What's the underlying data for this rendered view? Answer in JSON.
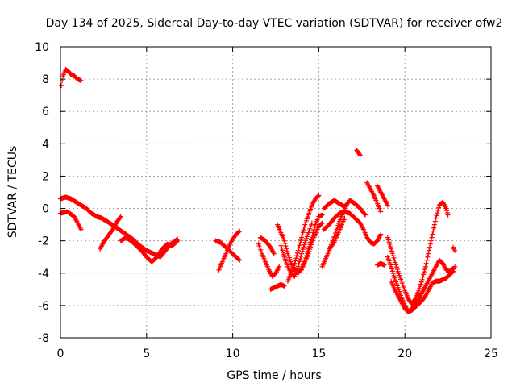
{
  "chart_data": {
    "type": "scatter",
    "title": "Day 134 of 2025, Sidereal Day-to-day VTEC variation (SDTVAR) for receiver ofw2",
    "xlabel": "GPS time / hours",
    "ylabel": "SDTVAR / TECUs",
    "xlim": [
      0,
      25
    ],
    "ylim": [
      -8,
      10
    ],
    "xticks": [
      0,
      5,
      10,
      15,
      20,
      25
    ],
    "yticks": [
      -8,
      -6,
      -4,
      -2,
      0,
      2,
      4,
      6,
      8,
      10
    ],
    "grid": true,
    "marker": "+",
    "color": "#ff0000",
    "series": [
      {
        "name": "tracks",
        "tracks": [
          [
            [
              0.05,
              7.6
            ],
            [
              0.15,
              8.2
            ],
            [
              0.3,
              8.6
            ],
            [
              0.45,
              8.5
            ],
            [
              0.6,
              8.3
            ],
            [
              0.8,
              8.2
            ],
            [
              1.0,
              8.0
            ],
            [
              1.2,
              7.9
            ]
          ],
          [
            [
              0.0,
              0.6
            ],
            [
              0.3,
              0.7
            ],
            [
              0.6,
              0.6
            ],
            [
              0.9,
              0.4
            ],
            [
              1.2,
              0.2
            ],
            [
              1.5,
              0.0
            ],
            [
              1.8,
              -0.3
            ],
            [
              2.1,
              -0.5
            ],
            [
              2.4,
              -0.6
            ],
            [
              2.7,
              -0.8
            ],
            [
              3.0,
              -1.0
            ],
            [
              3.4,
              -1.3
            ],
            [
              3.8,
              -1.6
            ],
            [
              4.2,
              -1.9
            ],
            [
              4.6,
              -2.3
            ],
            [
              5.0,
              -2.6
            ],
            [
              5.4,
              -2.8
            ],
            [
              5.8,
              -3.0
            ],
            [
              6.1,
              -2.6
            ],
            [
              6.4,
              -2.2
            ],
            [
              6.8,
              -1.9
            ]
          ],
          [
            [
              0.0,
              -0.3
            ],
            [
              0.4,
              -0.2
            ],
            [
              0.8,
              -0.5
            ],
            [
              1.0,
              -0.9
            ],
            [
              1.2,
              -1.3
            ]
          ],
          [
            [
              2.3,
              -2.5
            ],
            [
              2.5,
              -2.1
            ],
            [
              2.7,
              -1.8
            ],
            [
              2.9,
              -1.5
            ],
            [
              3.1,
              -1.2
            ],
            [
              3.3,
              -0.8
            ],
            [
              3.5,
              -0.5
            ]
          ],
          [
            [
              3.5,
              -2.0
            ],
            [
              3.8,
              -1.8
            ],
            [
              4.1,
              -2.0
            ],
            [
              4.4,
              -2.3
            ],
            [
              4.7,
              -2.6
            ],
            [
              5.0,
              -3.0
            ],
            [
              5.3,
              -3.3
            ],
            [
              5.6,
              -3.0
            ],
            [
              5.9,
              -2.5
            ],
            [
              6.2,
              -2.2
            ],
            [
              6.5,
              -2.3
            ],
            [
              6.8,
              -2.0
            ]
          ],
          [
            [
              9.2,
              -3.8
            ],
            [
              9.4,
              -3.3
            ],
            [
              9.6,
              -2.8
            ],
            [
              9.8,
              -2.3
            ],
            [
              10.0,
              -1.9
            ],
            [
              10.2,
              -1.6
            ],
            [
              10.4,
              -1.4
            ]
          ],
          [
            [
              9.0,
              -2.0
            ],
            [
              9.3,
              -2.1
            ],
            [
              9.6,
              -2.4
            ],
            [
              9.9,
              -2.7
            ],
            [
              10.2,
              -3.0
            ],
            [
              10.4,
              -3.2
            ]
          ],
          [
            [
              11.5,
              -2.2
            ],
            [
              11.7,
              -2.8
            ],
            [
              11.9,
              -3.3
            ],
            [
              12.1,
              -3.8
            ],
            [
              12.3,
              -4.2
            ],
            [
              12.5,
              -4.0
            ],
            [
              12.7,
              -3.6
            ]
          ],
          [
            [
              11.6,
              -1.8
            ],
            [
              11.9,
              -2.0
            ],
            [
              12.2,
              -2.4
            ],
            [
              12.4,
              -2.8
            ]
          ],
          [
            [
              12.6,
              -1.0
            ],
            [
              12.8,
              -1.5
            ],
            [
              13.0,
              -2.0
            ],
            [
              13.2,
              -2.8
            ],
            [
              13.4,
              -3.4
            ],
            [
              13.6,
              -3.8
            ],
            [
              13.8,
              -4.0
            ],
            [
              14.0,
              -3.7
            ],
            [
              14.2,
              -3.2
            ],
            [
              14.4,
              -2.5
            ],
            [
              14.6,
              -1.8
            ],
            [
              14.8,
              -1.0
            ],
            [
              15.0,
              -0.5
            ],
            [
              15.2,
              -0.4
            ]
          ],
          [
            [
              12.2,
              -5.0
            ],
            [
              12.4,
              -4.9
            ],
            [
              12.6,
              -4.8
            ],
            [
              12.8,
              -4.7
            ],
            [
              13.0,
              -4.8
            ]
          ],
          [
            [
              12.8,
              -2.3
            ],
            [
              13.0,
              -3.0
            ],
            [
              13.2,
              -3.6
            ],
            [
              13.4,
              -4.0
            ],
            [
              13.6,
              -4.2
            ],
            [
              13.8,
              -3.6
            ],
            [
              14.0,
              -2.8
            ],
            [
              14.2,
              -2.1
            ],
            [
              14.4,
              -1.5
            ],
            [
              14.6,
              -0.9
            ]
          ],
          [
            [
              13.2,
              -4.5
            ],
            [
              13.4,
              -4.0
            ],
            [
              13.6,
              -3.4
            ],
            [
              13.8,
              -2.6
            ],
            [
              14.0,
              -1.8
            ],
            [
              14.2,
              -1.0
            ],
            [
              14.4,
              -0.4
            ],
            [
              14.6,
              0.2
            ],
            [
              14.8,
              0.6
            ],
            [
              15.0,
              0.8
            ]
          ],
          [
            [
              14.0,
              -3.8
            ],
            [
              14.2,
              -3.3
            ],
            [
              14.4,
              -2.8
            ],
            [
              14.6,
              -2.1
            ],
            [
              14.8,
              -1.6
            ],
            [
              15.0,
              -1.1
            ],
            [
              15.2,
              -0.9
            ]
          ],
          [
            [
              15.2,
              -3.6
            ],
            [
              15.4,
              -3.1
            ],
            [
              15.6,
              -2.6
            ],
            [
              15.8,
              -2.0
            ],
            [
              16.0,
              -1.4
            ],
            [
              16.2,
              -0.8
            ],
            [
              16.4,
              -0.3
            ],
            [
              16.6,
              0.2
            ]
          ],
          [
            [
              15.3,
              -1.3
            ],
            [
              15.6,
              -1.0
            ],
            [
              15.9,
              -0.6
            ],
            [
              16.2,
              -0.3
            ],
            [
              16.5,
              -0.2
            ],
            [
              16.8,
              -0.3
            ],
            [
              17.1,
              -0.6
            ],
            [
              17.4,
              -0.9
            ]
          ],
          [
            [
              15.3,
              0.0
            ],
            [
              15.6,
              0.3
            ],
            [
              15.9,
              0.5
            ],
            [
              16.2,
              0.3
            ],
            [
              16.5,
              0.1
            ],
            [
              16.8,
              0.5
            ],
            [
              17.1,
              0.3
            ],
            [
              17.4,
              0.0
            ],
            [
              17.7,
              -0.4
            ]
          ],
          [
            [
              15.6,
              -2.5
            ],
            [
              15.9,
              -2.1
            ],
            [
              16.1,
              -1.6
            ],
            [
              16.3,
              -1.1
            ],
            [
              16.5,
              -0.6
            ]
          ],
          [
            [
              17.2,
              3.6
            ],
            [
              17.4,
              3.3
            ]
          ],
          [
            [
              17.4,
              -0.9
            ],
            [
              17.6,
              -1.3
            ],
            [
              17.8,
              -1.8
            ],
            [
              18.0,
              -2.1
            ],
            [
              18.2,
              -2.2
            ],
            [
              18.4,
              -2.0
            ],
            [
              18.6,
              -1.6
            ]
          ],
          [
            [
              17.8,
              1.6
            ],
            [
              18.0,
              1.2
            ],
            [
              18.2,
              0.8
            ],
            [
              18.4,
              0.3
            ],
            [
              18.6,
              -0.2
            ]
          ],
          [
            [
              18.4,
              1.4
            ],
            [
              18.6,
              1.0
            ],
            [
              18.8,
              0.6
            ],
            [
              19.0,
              0.2
            ]
          ],
          [
            [
              18.4,
              -3.5
            ],
            [
              18.6,
              -3.4
            ],
            [
              18.8,
              -3.5
            ]
          ],
          [
            [
              19.0,
              -1.8
            ],
            [
              19.2,
              -2.5
            ],
            [
              19.4,
              -3.2
            ],
            [
              19.6,
              -3.9
            ],
            [
              19.8,
              -4.5
            ],
            [
              20.0,
              -5.1
            ],
            [
              20.2,
              -5.6
            ],
            [
              20.4,
              -5.9
            ],
            [
              20.6,
              -5.6
            ],
            [
              20.8,
              -5.1
            ],
            [
              21.0,
              -4.4
            ],
            [
              21.2,
              -3.6
            ],
            [
              21.4,
              -2.6
            ],
            [
              21.6,
              -1.6
            ],
            [
              21.8,
              -0.6
            ],
            [
              22.0,
              0.2
            ],
            [
              22.2,
              0.4
            ],
            [
              22.4,
              0.0
            ],
            [
              22.5,
              -0.4
            ]
          ],
          [
            [
              19.0,
              -3.0
            ],
            [
              19.2,
              -3.6
            ],
            [
              19.4,
              -4.3
            ],
            [
              19.6,
              -4.9
            ],
            [
              19.8,
              -5.5
            ],
            [
              20.0,
              -6.0
            ],
            [
              20.2,
              -6.4
            ],
            [
              20.4,
              -6.2
            ],
            [
              20.6,
              -5.9
            ],
            [
              20.8,
              -5.6
            ],
            [
              21.0,
              -5.2
            ],
            [
              21.2,
              -4.8
            ],
            [
              21.4,
              -4.4
            ],
            [
              21.6,
              -4.0
            ],
            [
              21.8,
              -3.6
            ],
            [
              22.0,
              -3.2
            ],
            [
              22.2,
              -3.4
            ],
            [
              22.4,
              -3.8
            ],
            [
              22.6,
              -3.9
            ],
            [
              22.8,
              -3.7
            ]
          ],
          [
            [
              19.2,
              -4.5
            ],
            [
              19.4,
              -5.0
            ],
            [
              19.6,
              -5.4
            ],
            [
              19.8,
              -5.8
            ],
            [
              20.0,
              -6.2
            ],
            [
              20.2,
              -6.4
            ],
            [
              20.4,
              -6.3
            ],
            [
              20.6,
              -6.1
            ],
            [
              20.8,
              -5.9
            ],
            [
              21.0,
              -5.7
            ],
            [
              21.2,
              -5.4
            ],
            [
              21.4,
              -5.0
            ],
            [
              21.6,
              -4.6
            ],
            [
              21.8,
              -4.5
            ],
            [
              22.0,
              -4.5
            ],
            [
              22.2,
              -4.4
            ],
            [
              22.4,
              -4.3
            ],
            [
              22.6,
              -4.1
            ],
            [
              22.8,
              -3.9
            ],
            [
              22.9,
              -3.6
            ]
          ],
          [
            [
              22.8,
              -2.4
            ],
            [
              22.9,
              -2.6
            ]
          ]
        ]
      }
    ]
  }
}
